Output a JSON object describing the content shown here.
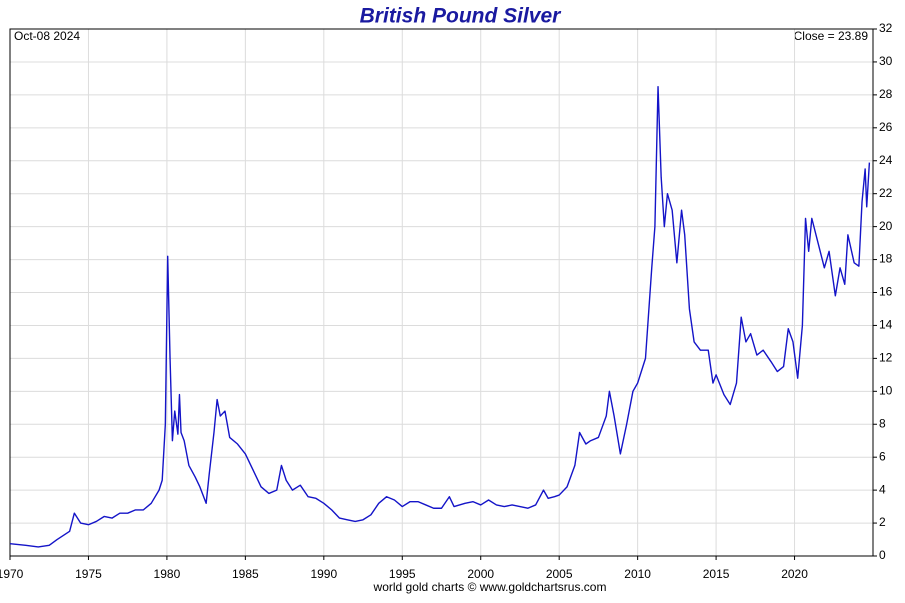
{
  "chart_data": {
    "type": "line",
    "title": "British Pound Silver",
    "date_label": "Oct-08  2024",
    "close_label": "Close = 23.89",
    "footer": "world gold charts © www.goldchartsrus.com",
    "xlim": [
      1970,
      2025
    ],
    "xticks": [
      1970,
      1975,
      1980,
      1985,
      1990,
      1995,
      2000,
      2005,
      2010,
      2015,
      2020
    ],
    "ylim": [
      0,
      32
    ],
    "yticks": [
      0,
      2,
      4,
      6,
      8,
      10,
      12,
      14,
      16,
      18,
      20,
      22,
      24,
      26,
      28,
      30,
      32
    ],
    "grid": true,
    "series": [
      {
        "name": "British Pound Silver",
        "color": "#1414c8",
        "x": [
          1970,
          1971,
          1971.8,
          1972.5,
          1973,
          1973.8,
          1974.1,
          1974.5,
          1975,
          1975.5,
          1976,
          1976.5,
          1977,
          1977.5,
          1978,
          1978.5,
          1979,
          1979.5,
          1979.7,
          1979.9,
          1980.05,
          1980.2,
          1980.35,
          1980.5,
          1980.7,
          1980.8,
          1980.9,
          1981.1,
          1981.4,
          1981.8,
          1982.1,
          1982.5,
          1982.7,
          1983.0,
          1983.2,
          1983.4,
          1983.7,
          1984,
          1984.5,
          1985,
          1985.5,
          1986,
          1986.5,
          1987,
          1987.3,
          1987.6,
          1988,
          1988.5,
          1989,
          1989.5,
          1990,
          1990.5,
          1991,
          1991.5,
          1992,
          1992.5,
          1993,
          1993.5,
          1994,
          1994.5,
          1995,
          1995.5,
          1996,
          1996.5,
          1997,
          1997.5,
          1998,
          1998.3,
          1999,
          1999.5,
          2000,
          2000.5,
          2001,
          2001.5,
          2002,
          2002.5,
          2003,
          2003.5,
          2004,
          2004.3,
          2004.7,
          2005,
          2005.5,
          2006,
          2006.3,
          2006.7,
          2007,
          2007.5,
          2008,
          2008.2,
          2008.5,
          2008.9,
          2009.3,
          2009.7,
          2010,
          2010.5,
          2010.9,
          2011.1,
          2011.3,
          2011.5,
          2011.7,
          2011.9,
          2012.2,
          2012.5,
          2012.8,
          2013.0,
          2013.3,
          2013.6,
          2014,
          2014.5,
          2014.8,
          2015,
          2015.5,
          2015.9,
          2016.3,
          2016.6,
          2016.9,
          2017.2,
          2017.6,
          2018,
          2018.5,
          2018.9,
          2019.3,
          2019.6,
          2019.9,
          2020.2,
          2020.5,
          2020.7,
          2020.9,
          2021.1,
          2021.5,
          2021.9,
          2022.2,
          2022.6,
          2022.9,
          2023.2,
          2023.4,
          2023.8,
          2024.1,
          2024.3,
          2024.5,
          2024.6,
          2024.77
        ],
        "values": [
          0.75,
          0.65,
          0.55,
          0.65,
          1.0,
          1.5,
          2.6,
          2.0,
          1.9,
          2.1,
          2.4,
          2.3,
          2.6,
          2.6,
          2.8,
          2.8,
          3.2,
          4.0,
          4.6,
          8.0,
          18.2,
          12,
          7,
          8.8,
          7.4,
          9.8,
          7.5,
          7,
          5.5,
          4.8,
          4.2,
          3.2,
          5,
          7.5,
          9.5,
          8.5,
          8.8,
          7.2,
          6.8,
          6.2,
          5.2,
          4.2,
          3.8,
          4.0,
          5.5,
          4.6,
          4.0,
          4.3,
          3.6,
          3.5,
          3.2,
          2.8,
          2.3,
          2.2,
          2.1,
          2.2,
          2.5,
          3.2,
          3.6,
          3.4,
          3.0,
          3.3,
          3.3,
          3.1,
          2.9,
          2.9,
          3.6,
          3.0,
          3.2,
          3.3,
          3.1,
          3.4,
          3.1,
          3.0,
          3.1,
          3.0,
          2.9,
          3.1,
          4.0,
          3.5,
          3.6,
          3.7,
          4.2,
          5.5,
          7.5,
          6.8,
          7.0,
          7.2,
          8.5,
          10.0,
          8.5,
          6.2,
          8.0,
          10.0,
          10.5,
          12.0,
          17.5,
          20,
          28.5,
          23,
          20,
          22,
          21,
          17.8,
          21,
          19.5,
          15,
          13,
          12.5,
          12.5,
          10.5,
          11,
          9.8,
          9.2,
          10.5,
          14.5,
          13,
          13.5,
          12.2,
          12.5,
          11.8,
          11.2,
          11.5,
          13.8,
          13.0,
          10.8,
          14.0,
          20.5,
          18.5,
          20.5,
          19,
          17.5,
          18.5,
          15.8,
          17.5,
          16.5,
          19.5,
          17.8,
          17.6,
          21.5,
          23.5,
          21.2,
          23.89
        ]
      }
    ]
  }
}
